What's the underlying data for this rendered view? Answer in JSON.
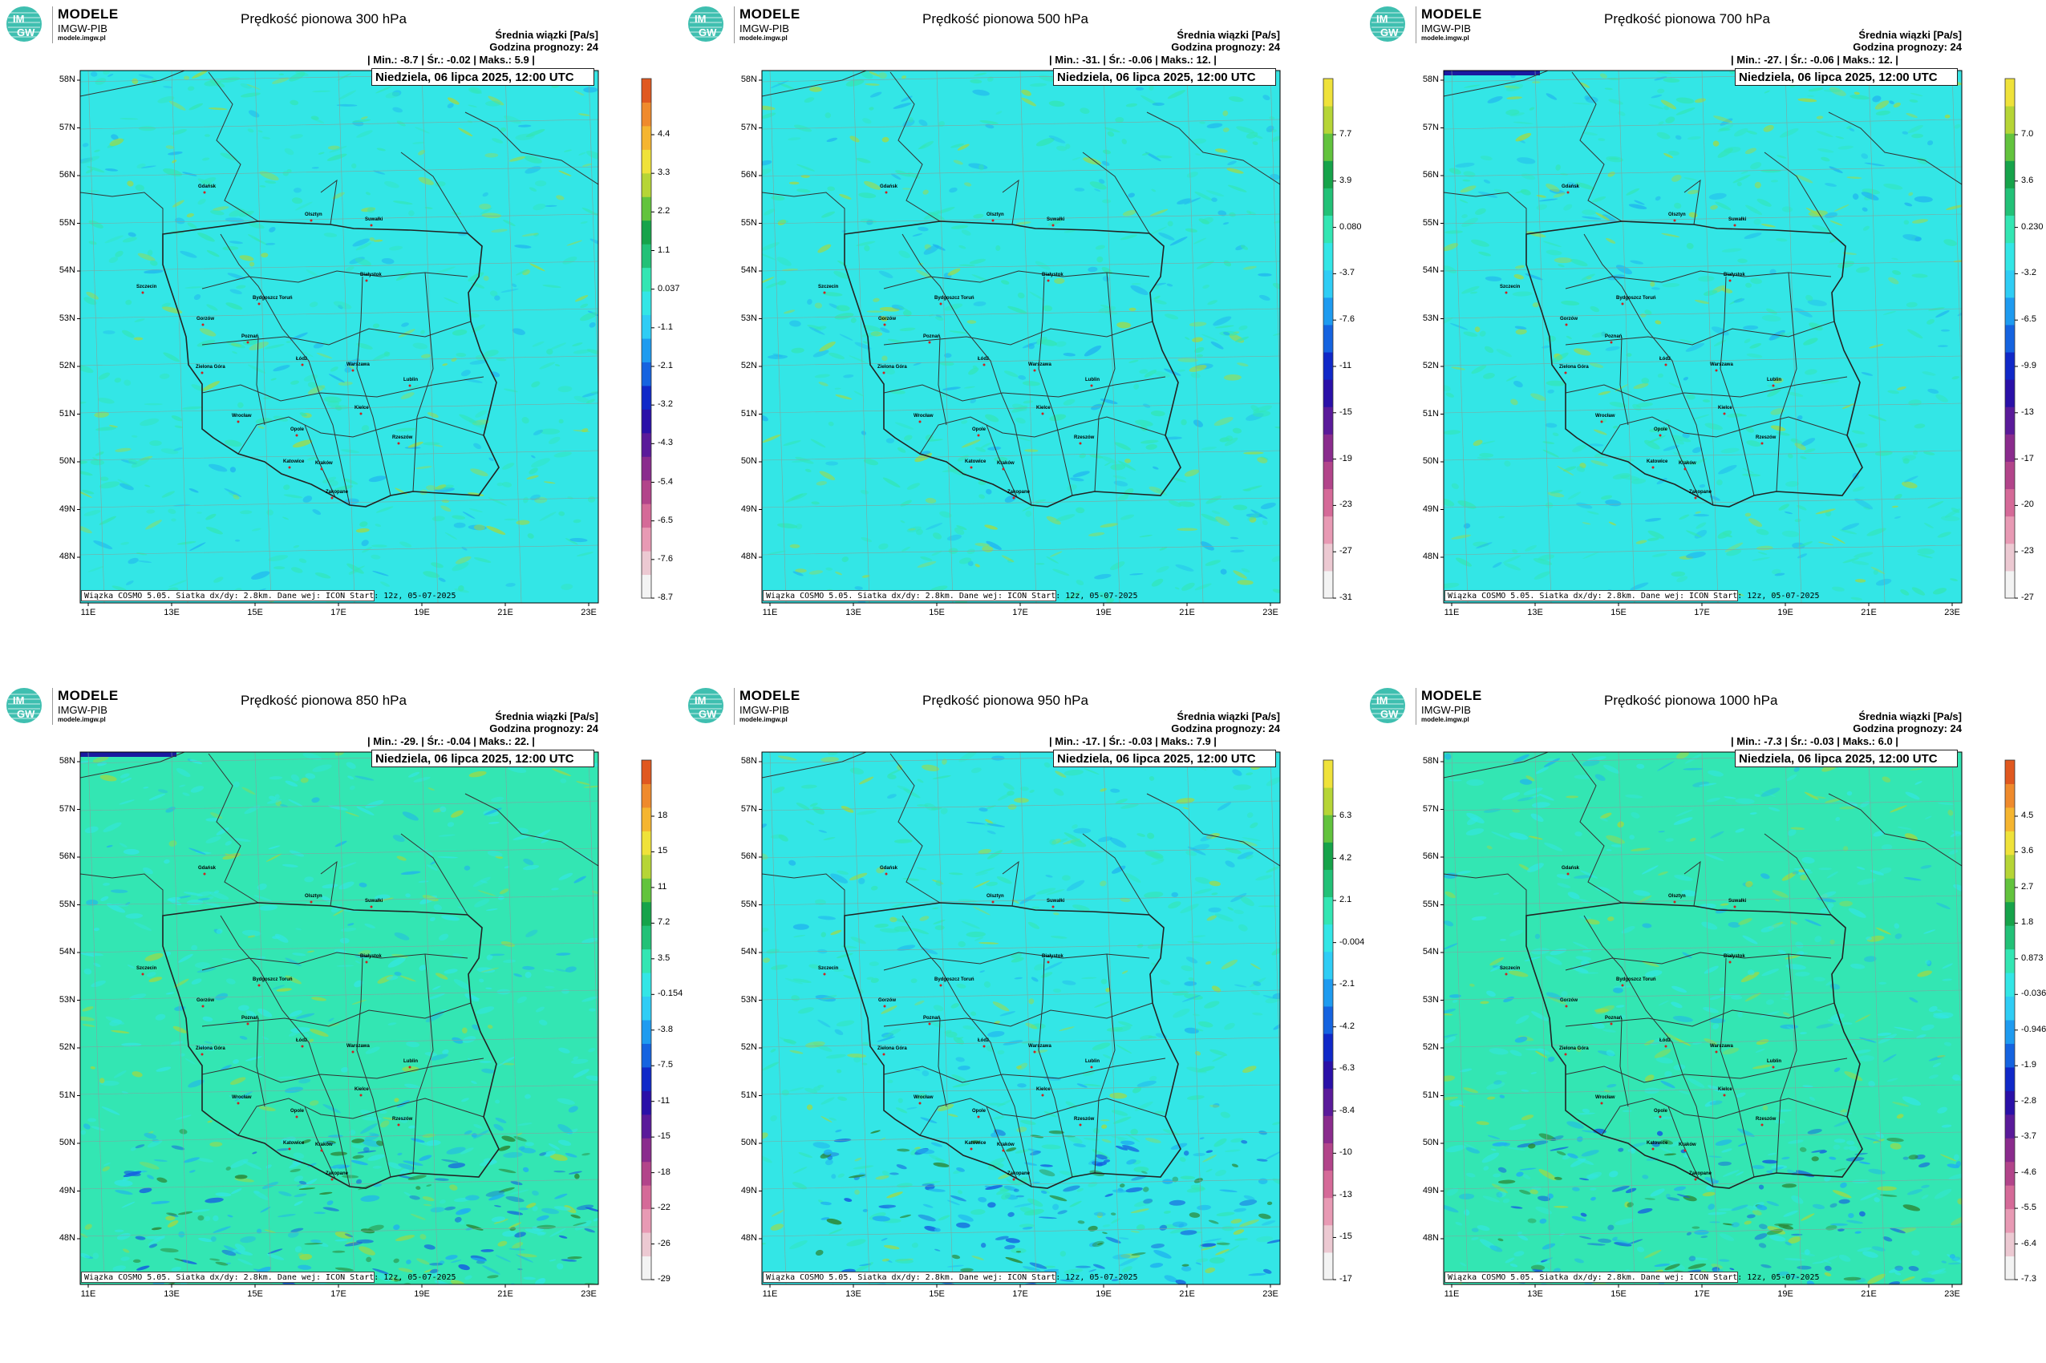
{
  "logo": {
    "name": "MODELE",
    "sub": "IMGW-PIB",
    "url": "modele.imgw.pl",
    "mark": [
      "IM",
      "GW"
    ]
  },
  "header": {
    "line1": "Średnia wiązki [Pa/s]",
    "line2": "Godzina prognozy: 24",
    "date": "Niedziela, 06 lipca 2025, 12:00 UTC",
    "footer": "Wiązka COSMO 5.05. Siatka dx/dy: 2.8km. Dane wej: ICON Start: 12z, 05-07-2025"
  },
  "stats_labels": {
    "min": "| Min.:",
    "avg": "| Śr.:",
    "max": "| Maks.:",
    "end": "|"
  },
  "lat_labels": [
    "58N",
    "57N",
    "56N",
    "55N",
    "54N",
    "53N",
    "52N",
    "51N",
    "50N",
    "49N",
    "48N"
  ],
  "lon_labels": [
    "11E",
    "13E",
    "15E",
    "17E",
    "19E",
    "21E",
    "23E"
  ],
  "cities": [
    "Gdańsk",
    "Olsztyn",
    "Suwałki",
    "Szczecin",
    "Białystok",
    "Bydgoszcz Toruń",
    "Gorzów",
    "Poznań",
    "Warszawa",
    "Zielona Góra",
    "Łódź",
    "Lublin",
    "Wrocław",
    "Kielce",
    "Opole",
    "Rzeszów",
    "Katowice",
    "Kraków",
    "Zakopane"
  ],
  "colors": {
    "cyan_base": "#33e6e6",
    "green_base": "#33e6b3",
    "border": "#222222",
    "colorbar_300": [
      "#f3f3f3",
      "#ecc9d2",
      "#e89ab4",
      "#d56a98",
      "#b2448a",
      "#8a2b8d",
      "#5a1a9a",
      "#2a10a8",
      "#1028c8",
      "#1563e0",
      "#1e9bf0",
      "#2fcdf5",
      "#33e6e6",
      "#33e6b3",
      "#22c177",
      "#16a34a",
      "#62c33d",
      "#b6d536",
      "#efe23a",
      "#f5b530",
      "#ef8a2c",
      "#e0581f"
    ],
    "colorbar_500": [
      "#f3f3f3",
      "#ecc9d2",
      "#e89ab4",
      "#d56a98",
      "#b2448a",
      "#8a2b8d",
      "#5a1a9a",
      "#2a10a8",
      "#1028c8",
      "#1563e0",
      "#1e9bf0",
      "#2fcdf5",
      "#33e6e6",
      "#33e6b3",
      "#22c177",
      "#16a34a",
      "#62c33d",
      "#b6d536",
      "#efe23a"
    ]
  },
  "panels": [
    {
      "title": "Prędkość pionowa 300 hPa",
      "min": "-8.7",
      "avg": "-0.02",
      "max": "5.9",
      "colorbar_labels": [
        "4.4",
        "3.3",
        "2.2",
        "1.1",
        "0.037",
        "-1.1",
        "-2.1",
        "-3.2",
        "-4.3",
        "-5.4",
        "-6.5",
        "-7.6",
        "-8.7"
      ],
      "colorbar": "warm",
      "texture": "cyan"
    },
    {
      "title": "Prędkość pionowa 500 hPa",
      "min": "-31.",
      "avg": "-0.06",
      "max": "12.",
      "colorbar_labels": [
        "7.7",
        "3.9",
        "0.080",
        "-3.7",
        "-7.6",
        "-11",
        "-15",
        "-19",
        "-23",
        "-27",
        "-31"
      ],
      "colorbar": "yellow",
      "texture": "cyan"
    },
    {
      "title": "Prędkość pionowa 700 hPa",
      "min": "-27.",
      "avg": "-0.06",
      "max": "12.",
      "colorbar_labels": [
        "7.0",
        "3.6",
        "0.230",
        "-3.2",
        "-6.5",
        "-9.9",
        "-13",
        "-17",
        "-20",
        "-23",
        "-27"
      ],
      "colorbar": "yellow",
      "texture": "cyan"
    },
    {
      "title": "Prędkość pionowa 850 hPa",
      "min": "-29.",
      "avg": "-0.04",
      "max": "22.",
      "colorbar_labels": [
        "18",
        "15",
        "11",
        "7.2",
        "3.5",
        "-0.154",
        "-3.8",
        "-7.5",
        "-11",
        "-15",
        "-18",
        "-22",
        "-26",
        "-29"
      ],
      "colorbar": "warm",
      "texture": "green"
    },
    {
      "title": "Prędkość pionowa 950 hPa",
      "min": "-17.",
      "avg": "-0.03",
      "max": "7.9",
      "colorbar_labels": [
        "6.3",
        "4.2",
        "2.1",
        "-0.004",
        "-2.1",
        "-4.2",
        "-6.3",
        "-8.4",
        "-10",
        "-13",
        "-15",
        "-17"
      ],
      "colorbar": "yellow",
      "texture": "cyan"
    },
    {
      "title": "Prędkość pionowa 1000 hPa",
      "min": "-7.3",
      "avg": "-0.03",
      "max": "6.0",
      "colorbar_labels": [
        "4.5",
        "3.6",
        "2.7",
        "1.8",
        "0.873",
        "-0.036",
        "-0.946",
        "-1.9",
        "-2.8",
        "-3.7",
        "-4.6",
        "-5.5",
        "-6.4",
        "-7.3"
      ],
      "colorbar": "warm",
      "texture": "green"
    }
  ]
}
